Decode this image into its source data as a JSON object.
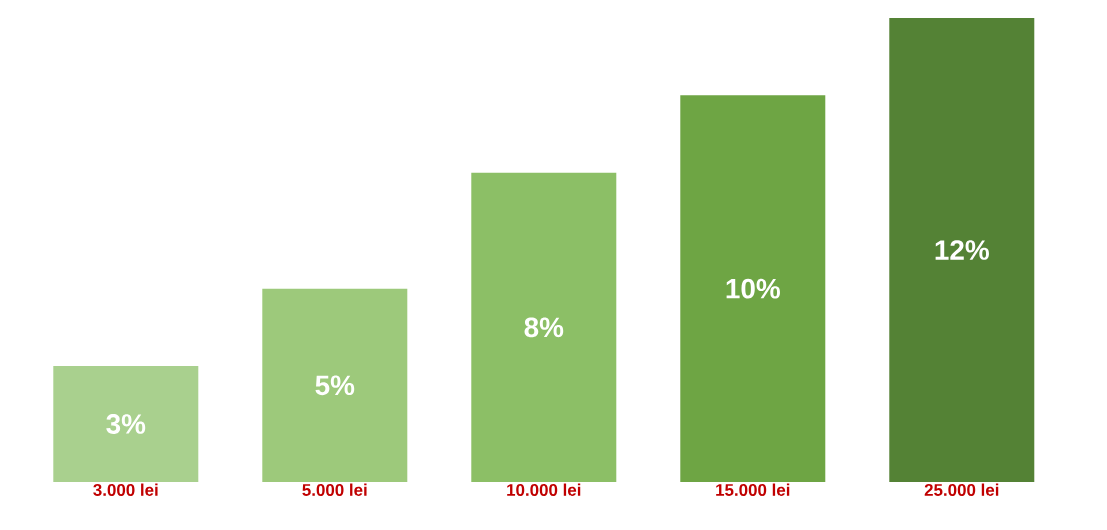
{
  "chart_data": {
    "type": "bar",
    "categories": [
      "3.000 lei",
      "5.000 lei",
      "10.000 lei",
      "15.000 lei",
      "25.000 lei"
    ],
    "values": [
      3,
      5,
      8,
      10,
      12
    ],
    "value_labels": [
      "3%",
      "5%",
      "8%",
      "10%",
      "12%"
    ],
    "colors": [
      "#a9d08e",
      "#9dc97b",
      "#8cbf66",
      "#6ea544",
      "#548235"
    ]
  }
}
